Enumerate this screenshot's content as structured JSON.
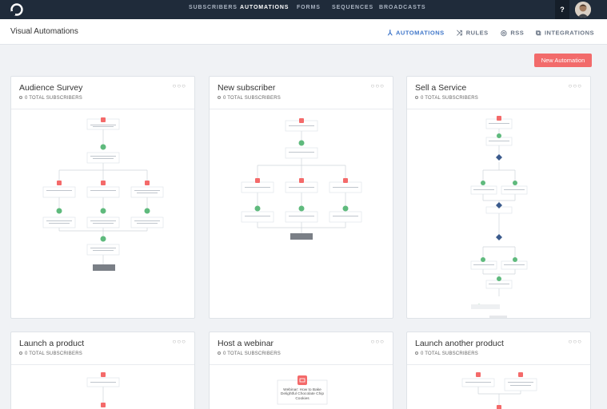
{
  "nav": {
    "links": [
      "SUBSCRIBERS",
      "AUTOMATIONS",
      "FORMS",
      "SEQUENCES",
      "BROADCASTS"
    ],
    "active": "AUTOMATIONS",
    "help": "?"
  },
  "header": {
    "title": "Visual Automations",
    "tabs": [
      {
        "label": "AUTOMATIONS",
        "icon": "automation-icon",
        "active": true
      },
      {
        "label": "RULES",
        "icon": "shuffle-icon",
        "active": false
      },
      {
        "label": "RSS",
        "icon": "rss-icon",
        "active": false
      },
      {
        "label": "INTEGRATIONS",
        "icon": "puzzle-icon",
        "active": false
      }
    ]
  },
  "new_button": "New Automation",
  "colors": {
    "accent": "#f26b6b",
    "active_tab": "#3f76c9",
    "nav_bg": "#1f2b3a",
    "event": "#f46a6a",
    "action": "#5fba7d",
    "condition": "#3a5a8c"
  },
  "cards": [
    {
      "title": "Audience Survey",
      "subscribers": "0 TOTAL SUBSCRIBERS",
      "menu": "○○○"
    },
    {
      "title": "New subscriber",
      "subscribers": "0 TOTAL SUBSCRIBERS",
      "menu": "○○○"
    },
    {
      "title": "Sell a Service",
      "subscribers": "0 TOTAL SUBSCRIBERS",
      "menu": "○○○"
    },
    {
      "title": "Launch a product",
      "subscribers": "0 TOTAL SUBSCRIBERS",
      "menu": "○○○"
    },
    {
      "title": "Host a webinar",
      "subscribers": "0 TOTAL SUBSCRIBERS",
      "menu": "○○○"
    },
    {
      "title": "Launch another product",
      "subscribers": "0 TOTAL SUBSCRIBERS",
      "menu": "○○○"
    }
  ],
  "webinar_node": "Webinar: How to Bake Delightful Chocolate Chip Cookies"
}
